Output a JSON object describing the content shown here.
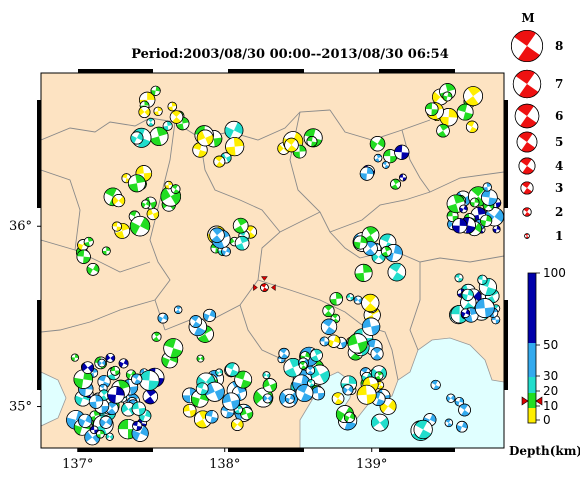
{
  "title": "Period:2003/08/30 00:00--2013/08/30 06:54",
  "x_ticks": [
    {
      "lon": 137,
      "label": "137°"
    },
    {
      "lon": 138,
      "label": "138°"
    },
    {
      "lon": 139,
      "label": "139°"
    }
  ],
  "y_ticks": [
    {
      "lat": 36,
      "label": "36°"
    },
    {
      "lat": 35,
      "label": "35°"
    }
  ],
  "extent": {
    "lon": [
      136.75,
      139.9
    ],
    "lat": [
      34.77,
      36.85
    ]
  },
  "colors": {
    "land": "#fde3c2",
    "sea": "#e0ffff",
    "boundary": "#888888",
    "frame": "#000000"
  },
  "depth_colors": [
    {
      "range": [
        0,
        10
      ],
      "color": "#ffee00"
    },
    {
      "range": [
        10,
        20
      ],
      "color": "#22dd22"
    },
    {
      "range": [
        20,
        30
      ],
      "color": "#22ddcc"
    },
    {
      "range": [
        30,
        50
      ],
      "color": "#33aaee"
    },
    {
      "range": [
        50,
        100
      ],
      "color": "#0000aa"
    }
  ],
  "magnitude_legend": {
    "header": "M",
    "items": [
      {
        "label": "8",
        "mag": 8
      },
      {
        "label": "7",
        "mag": 7
      },
      {
        "label": "6",
        "mag": 6
      },
      {
        "label": "5",
        "mag": 5
      },
      {
        "label": "4",
        "mag": 4
      },
      {
        "label": "3",
        "mag": 3
      },
      {
        "label": "2",
        "mag": 2
      },
      {
        "label": "1",
        "mag": 1
      }
    ]
  },
  "depth_legend": {
    "label": "Depth(km)",
    "ticks": [
      "100",
      "50",
      "30",
      "20",
      "10",
      "0"
    ],
    "marker_depth": 15
  },
  "epicenter": {
    "lon": 138.27,
    "lat": 35.66
  },
  "clusters": [
    {
      "lon": 137.55,
      "lat": 36.62,
      "spread": 0.18,
      "count": 14,
      "colors": [
        "#ffee00",
        "#22dd22",
        "#22ddcc"
      ]
    },
    {
      "lon": 137.95,
      "lat": 36.45,
      "spread": 0.12,
      "count": 8,
      "colors": [
        "#22dd22",
        "#ffee00",
        "#22ddcc"
      ]
    },
    {
      "lon": 137.45,
      "lat": 36.15,
      "spread": 0.22,
      "count": 18,
      "colors": [
        "#ffee00",
        "#22dd22"
      ]
    },
    {
      "lon": 137.1,
      "lat": 35.85,
      "spread": 0.12,
      "count": 6,
      "colors": [
        "#22dd22",
        "#ffee00"
      ]
    },
    {
      "lon": 138.05,
      "lat": 35.9,
      "spread": 0.14,
      "count": 12,
      "colors": [
        "#ffee00",
        "#22dd22",
        "#22ddcc",
        "#33aaee"
      ]
    },
    {
      "lon": 138.5,
      "lat": 36.5,
      "spread": 0.12,
      "count": 6,
      "colors": [
        "#22dd22",
        "#ffee00"
      ]
    },
    {
      "lon": 139.1,
      "lat": 36.35,
      "spread": 0.15,
      "count": 9,
      "colors": [
        "#22dd22",
        "#33aaee",
        "#0000aa"
      ]
    },
    {
      "lon": 139.55,
      "lat": 36.65,
      "spread": 0.15,
      "count": 14,
      "colors": [
        "#ffee00",
        "#22dd22"
      ]
    },
    {
      "lon": 139.7,
      "lat": 36.1,
      "spread": 0.15,
      "count": 26,
      "colors": [
        "#0000aa",
        "#33aaee",
        "#22dd22"
      ]
    },
    {
      "lon": 139.7,
      "lat": 35.6,
      "spread": 0.15,
      "count": 22,
      "colors": [
        "#0000aa",
        "#33aaee",
        "#22ddcc"
      ]
    },
    {
      "lon": 139.05,
      "lat": 35.85,
      "spread": 0.14,
      "count": 12,
      "colors": [
        "#22dd22",
        "#33aaee",
        "#22ddcc"
      ]
    },
    {
      "lon": 138.85,
      "lat": 35.45,
      "spread": 0.2,
      "count": 22,
      "colors": [
        "#22dd22",
        "#22ddcc",
        "#33aaee",
        "#ffee00"
      ]
    },
    {
      "lon": 138.45,
      "lat": 35.2,
      "spread": 0.2,
      "count": 26,
      "colors": [
        "#22dd22",
        "#22ddcc",
        "#33aaee"
      ]
    },
    {
      "lon": 138.95,
      "lat": 35.05,
      "spread": 0.18,
      "count": 22,
      "colors": [
        "#33aaee",
        "#22ddcc",
        "#ffee00",
        "#22dd22"
      ]
    },
    {
      "lon": 139.5,
      "lat": 35.0,
      "spread": 0.18,
      "count": 10,
      "colors": [
        "#33aaee",
        "#22ddcc"
      ]
    },
    {
      "lon": 137.25,
      "lat": 35.05,
      "spread": 0.28,
      "count": 60,
      "colors": [
        "#33aaee",
        "#33aaee",
        "#22ddcc",
        "#0000aa",
        "#22dd22"
      ]
    },
    {
      "lon": 137.95,
      "lat": 35.05,
      "spread": 0.2,
      "count": 24,
      "colors": [
        "#33aaee",
        "#22dd22",
        "#ffee00",
        "#22ddcc"
      ]
    },
    {
      "lon": 137.7,
      "lat": 35.4,
      "spread": 0.2,
      "count": 10,
      "colors": [
        "#22dd22",
        "#33aaee"
      ]
    }
  ]
}
